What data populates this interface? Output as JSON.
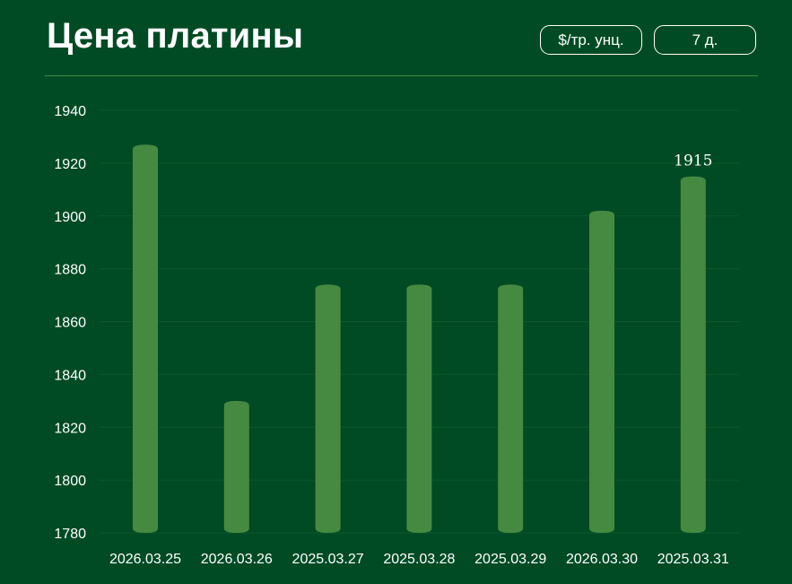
{
  "header": {
    "title": "Цена платины",
    "unit_button": "$/тр. унц.",
    "period_button": "7 д."
  },
  "colors": {
    "background": "#004b23",
    "bar": "#468a41",
    "grid": "#0b5a2c",
    "divider": "#3f8a45",
    "text": "#ffffff"
  },
  "chart_data": {
    "type": "bar",
    "title": "Цена платины",
    "categories": [
      "2026.03.25",
      "2026.03.26",
      "2025.03.27",
      "2025.03.28",
      "2025.03.29",
      "2026.03.30",
      "2025.03.31"
    ],
    "values": [
      1927,
      1830,
      1874,
      1874,
      1874,
      1902,
      1915
    ],
    "ylim": [
      1780,
      1940
    ],
    "yticks": [
      1780,
      1800,
      1820,
      1840,
      1860,
      1880,
      1900,
      1920,
      1940
    ],
    "labeled_point_index": 6,
    "grid": true,
    "legend": "none"
  }
}
